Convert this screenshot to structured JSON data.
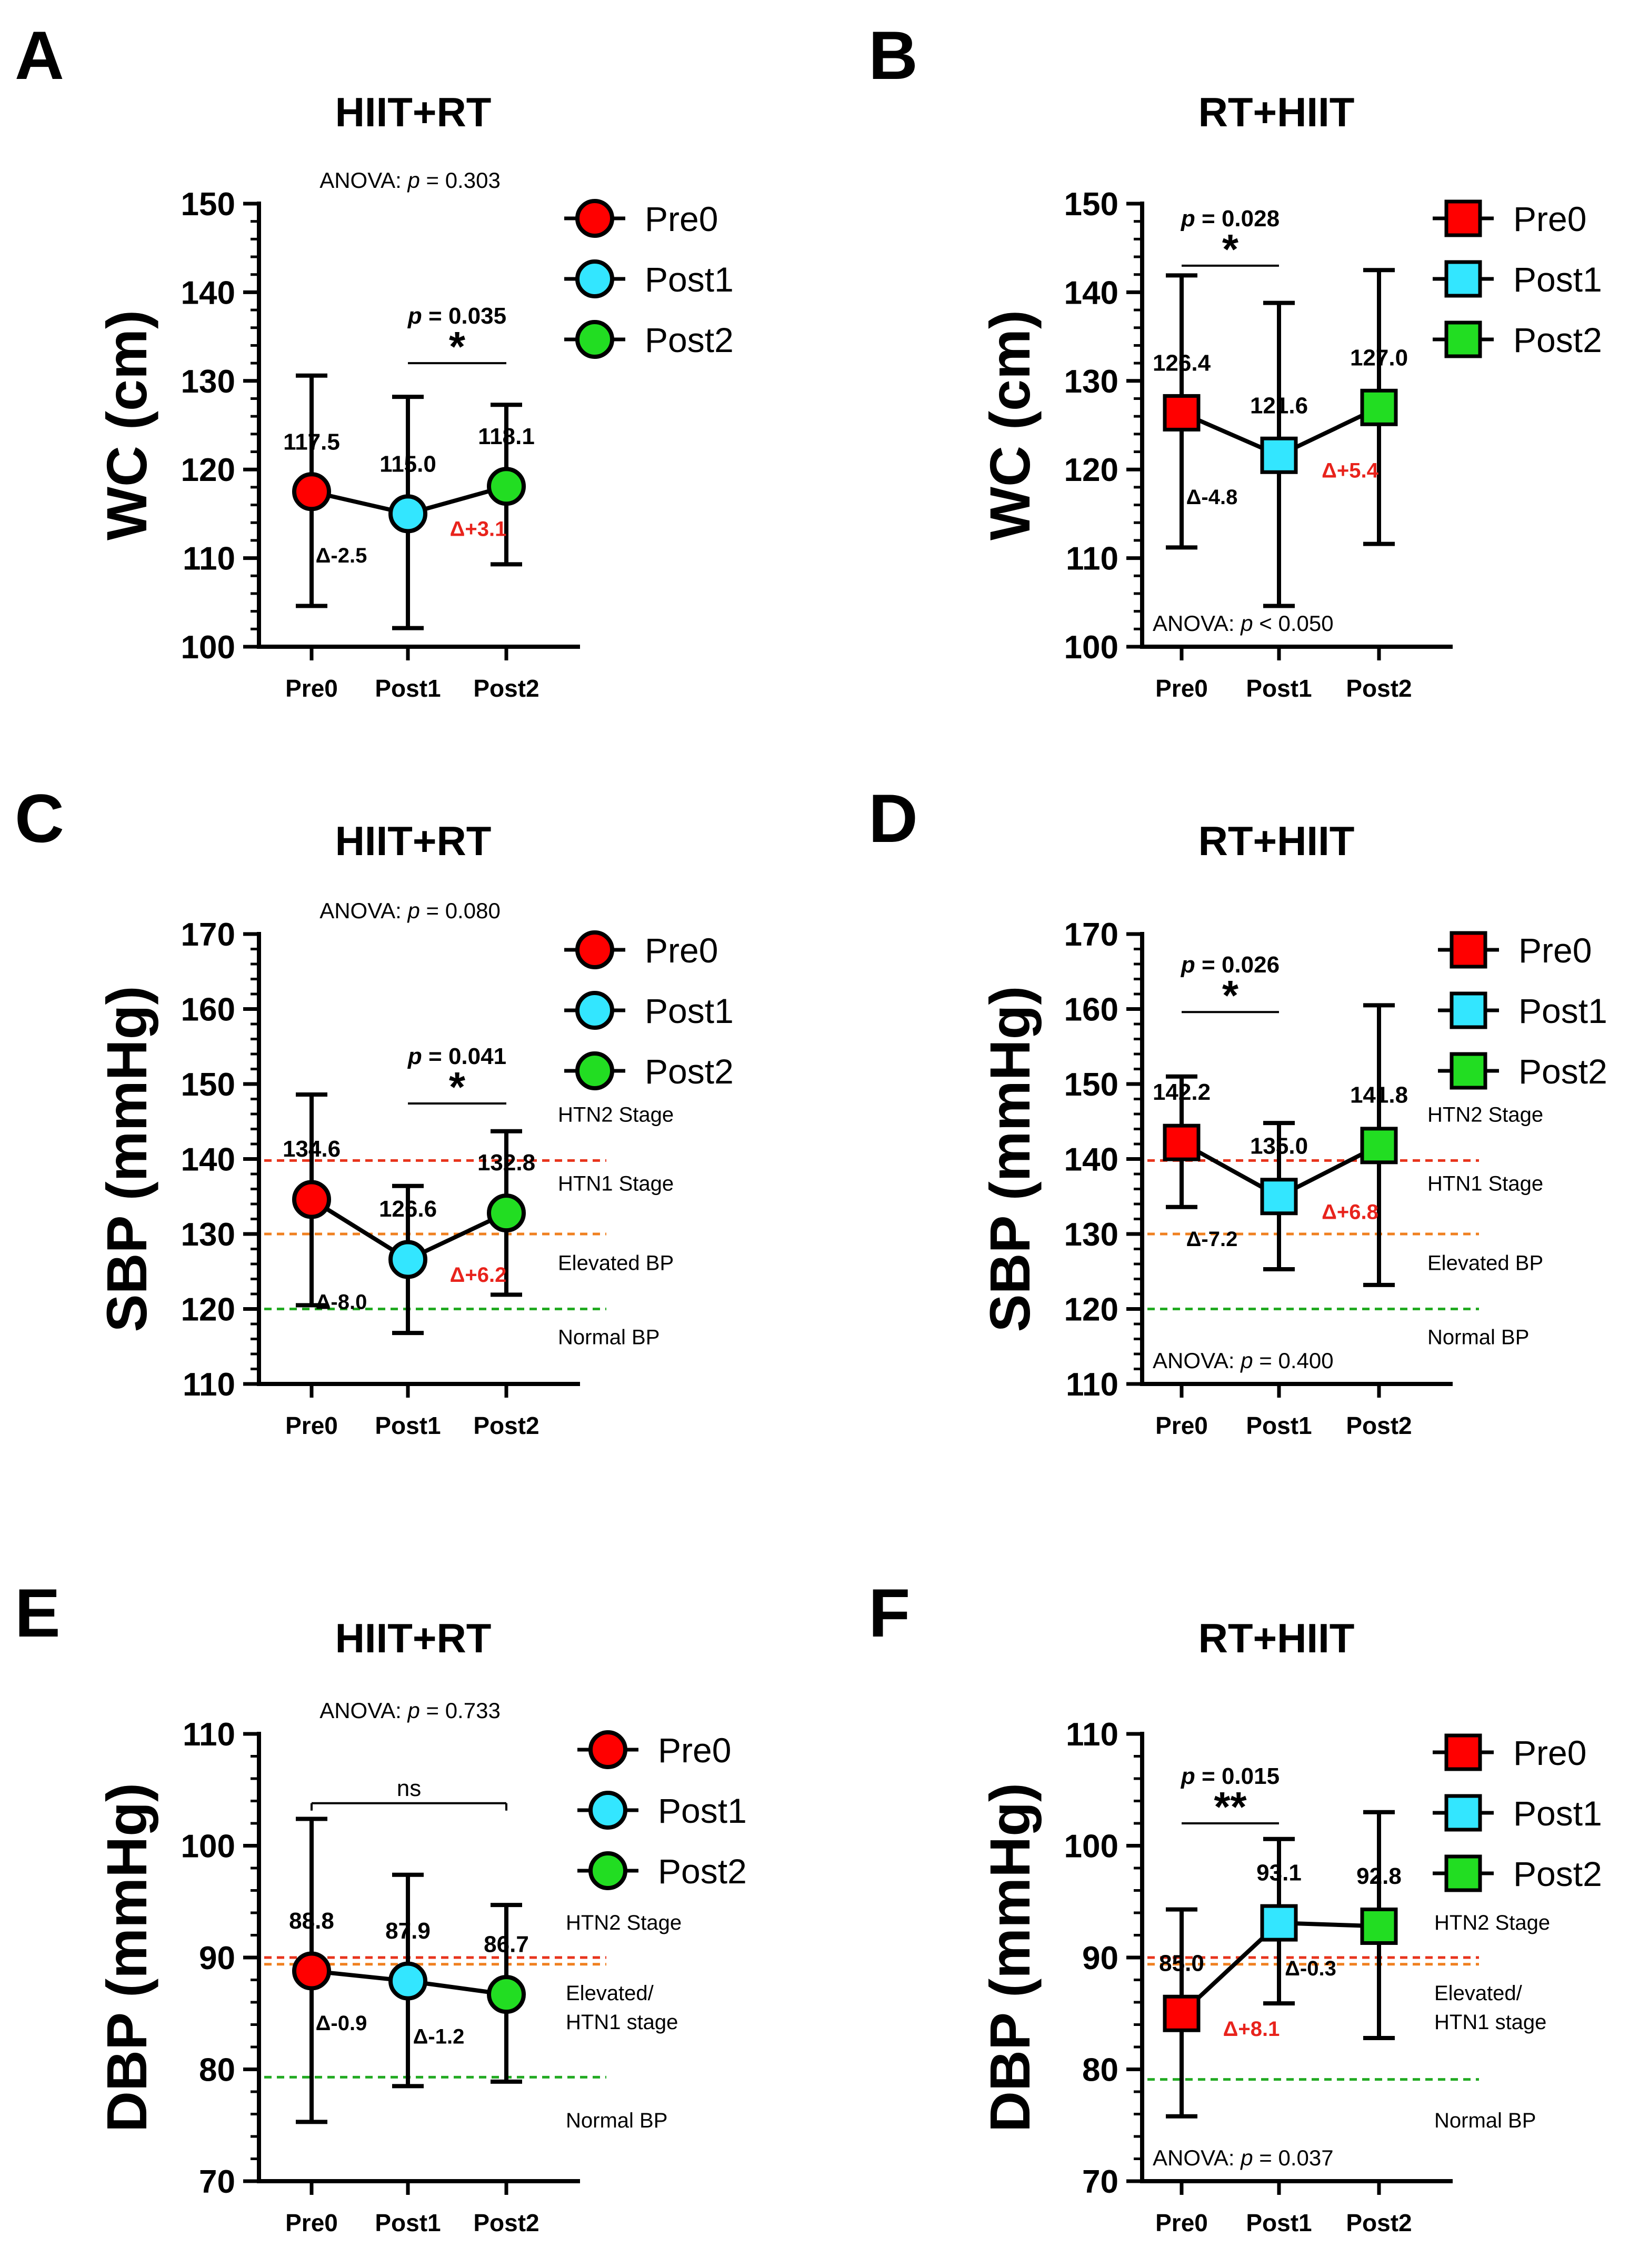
{
  "legend_labels": [
    "Pre0",
    "Post1",
    "Post2"
  ],
  "colors": {
    "pre0": "#ff0000",
    "post1": "#33e6ff",
    "post2": "#22dd22",
    "htn2_line": "#e8341c",
    "htn1_line": "#f08020",
    "normal_line": "#22aa22",
    "delta_red": "#e8231c",
    "ink": "#000000"
  },
  "chart_data": [
    {
      "panel_label": "A",
      "type": "scatter",
      "marker": "circle",
      "title": "HIIT+RT",
      "ylabel": "WC (cm)",
      "categories": [
        "Pre0",
        "Post1",
        "Post2"
      ],
      "ylim": [
        100,
        150
      ],
      "yticks": [
        100,
        110,
        120,
        130,
        140,
        150
      ],
      "means": [
        117.5,
        115.0,
        118.1
      ],
      "mean_labels": [
        "117.5",
        "115.0",
        "118.1"
      ],
      "err_upper": [
        130.6,
        128.2,
        127.3
      ],
      "err_lower": [
        104.6,
        102.1,
        109.3
      ],
      "anova": {
        "prefix": "ANOVA: ",
        "p": "p",
        "rest": " = 0.303",
        "pos": "top"
      },
      "deltas": [
        {
          "text": "Δ-2.5",
          "red": false
        },
        {
          "text": "Δ+3.1",
          "red": true
        }
      ],
      "comparison": {
        "from": 1,
        "to": 2,
        "label": "p = 0.035",
        "stars": "*",
        "y": 132.0
      },
      "reference_lines": []
    },
    {
      "panel_label": "B",
      "type": "scatter",
      "marker": "square",
      "title": "RT+HIIT",
      "ylabel": "WC (cm)",
      "categories": [
        "Pre0",
        "Post1",
        "Post2"
      ],
      "ylim": [
        100,
        150
      ],
      "yticks": [
        100,
        110,
        120,
        130,
        140,
        150
      ],
      "means": [
        126.4,
        121.6,
        127.0
      ],
      "mean_labels": [
        "126.4",
        "121.6",
        "127.0"
      ],
      "err_upper": [
        141.9,
        138.8,
        142.5
      ],
      "err_lower": [
        111.2,
        104.6,
        111.6
      ],
      "anova": {
        "prefix": "ANOVA: ",
        "p": "p",
        "rest": " < 0.050",
        "pos": "bottom"
      },
      "deltas": [
        {
          "text": "Δ-4.8",
          "red": false
        },
        {
          "text": "Δ+5.4",
          "red": true
        }
      ],
      "comparison": {
        "from": 0,
        "to": 1,
        "label": "p = 0.028",
        "stars": "*",
        "y": 143.0
      },
      "reference_lines": []
    },
    {
      "panel_label": "C",
      "type": "scatter",
      "marker": "circle",
      "title": "HIIT+RT",
      "ylabel": "SBP (mmHg)",
      "categories": [
        "Pre0",
        "Post1",
        "Post2"
      ],
      "ylim": [
        110,
        170
      ],
      "yticks": [
        110,
        120,
        130,
        140,
        150,
        160,
        170
      ],
      "means": [
        134.6,
        126.6,
        132.8
      ],
      "mean_labels": [
        "134.6",
        "126.6",
        "132.8"
      ],
      "err_upper": [
        148.6,
        136.4,
        143.7
      ],
      "err_lower": [
        120.5,
        116.8,
        121.9
      ],
      "anova": {
        "prefix": "ANOVA: ",
        "p": "p",
        "rest": " = 0.080",
        "pos": "top"
      },
      "deltas": [
        {
          "text": "Δ-8.0",
          "red": false
        },
        {
          "text": "Δ+6.2",
          "red": true
        }
      ],
      "comparison": {
        "from": 1,
        "to": 2,
        "label": "p = 0.041",
        "stars": "*",
        "y": 147.4
      },
      "reference_lines": [
        {
          "y": 139.8,
          "color_key": "htn2_line"
        },
        {
          "y": 130.0,
          "color_key": "htn1_line"
        },
        {
          "y": 120.0,
          "color_key": "normal_line"
        }
      ],
      "zone_labels": [
        "HTN2 Stage",
        "HTN1 Stage",
        "Elevated BP",
        "Normal BP"
      ]
    },
    {
      "panel_label": "D",
      "type": "scatter",
      "marker": "square",
      "title": "RT+HIIT",
      "ylabel": "SBP (mmHg)",
      "categories": [
        "Pre0",
        "Post1",
        "Post2"
      ],
      "ylim": [
        110,
        170
      ],
      "yticks": [
        110,
        120,
        130,
        140,
        150,
        160,
        170
      ],
      "means": [
        142.2,
        135.0,
        141.8
      ],
      "mean_labels": [
        "142.2",
        "135.0",
        "141.8"
      ],
      "err_upper": [
        151.0,
        144.8,
        160.5
      ],
      "err_lower": [
        133.6,
        125.3,
        123.2
      ],
      "anova": {
        "prefix": "ANOVA: ",
        "p": "p",
        "rest": " = 0.400",
        "pos": "bottom"
      },
      "deltas": [
        {
          "text": "Δ-7.2",
          "red": false
        },
        {
          "text": "Δ+6.8",
          "red": true
        }
      ],
      "comparison": {
        "from": 0,
        "to": 1,
        "label": "p = 0.026",
        "stars": "*",
        "y": 159.6
      },
      "reference_lines": [
        {
          "y": 139.8,
          "color_key": "htn2_line"
        },
        {
          "y": 130.0,
          "color_key": "htn1_line"
        },
        {
          "y": 120.0,
          "color_key": "normal_line"
        }
      ],
      "zone_labels": [
        "HTN2 Stage",
        "HTN1 Stage",
        "Elevated BP",
        "Normal BP"
      ]
    },
    {
      "panel_label": "E",
      "type": "scatter",
      "marker": "circle",
      "title": "HIIT+RT",
      "ylabel": "DBP (mmHg)",
      "categories": [
        "Pre0",
        "Post1",
        "Post2"
      ],
      "ylim": [
        70,
        110
      ],
      "yticks": [
        70,
        80,
        90,
        100,
        110
      ],
      "means": [
        88.8,
        87.9,
        86.7
      ],
      "mean_labels": [
        "88.8",
        "87.9",
        "86.7"
      ],
      "err_upper": [
        102.4,
        97.4,
        94.7
      ],
      "err_lower": [
        75.3,
        78.5,
        78.9
      ],
      "anova": {
        "prefix": "ANOVA: ",
        "p": "p",
        "rest": " = 0.733",
        "pos": "top"
      },
      "deltas": [
        {
          "text": "Δ-0.9",
          "red": false
        },
        {
          "text": "Δ-1.2",
          "red": false
        }
      ],
      "comparison": {
        "from": 0,
        "to": 2,
        "label": "",
        "stars": "ns",
        "y": 103.8
      },
      "reference_lines": [
        {
          "y": 90.0,
          "color_key": "htn2_line"
        },
        {
          "y": 89.4,
          "color_key": "htn1_line"
        },
        {
          "y": 79.3,
          "color_key": "normal_line"
        }
      ],
      "zone_labels": [
        "HTN2 Stage",
        "Elevated/",
        "HTN1 stage",
        "Normal BP"
      ]
    },
    {
      "panel_label": "F",
      "type": "scatter",
      "marker": "square",
      "title": "RT+HIIT",
      "ylabel": "DBP (mmHg)",
      "categories": [
        "Pre0",
        "Post1",
        "Post2"
      ],
      "ylim": [
        70,
        110
      ],
      "yticks": [
        70,
        80,
        90,
        100,
        110
      ],
      "means": [
        85.0,
        93.1,
        92.8
      ],
      "mean_labels": [
        "85.0",
        "93.1",
        "92.8"
      ],
      "err_upper": [
        94.3,
        100.6,
        103.0
      ],
      "err_lower": [
        75.8,
        85.9,
        82.8
      ],
      "anova": {
        "prefix": "ANOVA: ",
        "p": "p",
        "rest": " = 0.037",
        "pos": "bottom"
      },
      "deltas": [
        {
          "text": "Δ+8.1",
          "red": true
        },
        {
          "text": "Δ-0.3",
          "red": false
        }
      ],
      "comparison": {
        "from": 0,
        "to": 1,
        "label": "p = 0.015",
        "stars": "**",
        "y": 102.0
      },
      "reference_lines": [
        {
          "y": 90.0,
          "color_key": "htn2_line"
        },
        {
          "y": 89.4,
          "color_key": "htn1_line"
        },
        {
          "y": 79.1,
          "color_key": "normal_line"
        }
      ],
      "zone_labels": [
        "HTN2 Stage",
        "Elevated/",
        "HTN1 stage",
        "Normal BP"
      ]
    }
  ]
}
